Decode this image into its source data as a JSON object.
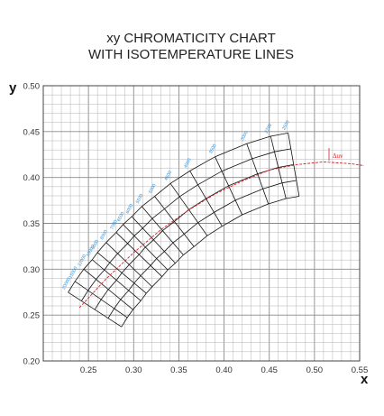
{
  "chart_data": {
    "type": "line",
    "title": [
      "xy CHROMATICITY CHART",
      "WITH ISOTEMPERATURE LINES"
    ],
    "xlabel": "x",
    "ylabel": "y",
    "xlim": [
      0.2,
      0.55
    ],
    "ylim": [
      0.2,
      0.5
    ],
    "xticks": [
      0.25,
      0.3,
      0.35,
      0.4,
      0.45,
      0.5,
      0.55
    ],
    "yticks": [
      0.2,
      0.25,
      0.3,
      0.35,
      0.4,
      0.45,
      0.5
    ],
    "xtick_labels": [
      "0.25",
      "0.30",
      "0.35",
      "0.40",
      "0.45",
      "0.50",
      "0.55"
    ],
    "ytick_labels": [
      "0.20",
      "0.25",
      "0.30",
      "0.35",
      "0.40",
      "0.45",
      "0.50"
    ],
    "grid": true,
    "planckian_locus": {
      "x": [
        0.24,
        0.27,
        0.3,
        0.33,
        0.36,
        0.39,
        0.42,
        0.45,
        0.48,
        0.51,
        0.54,
        0.555
      ],
      "y": [
        0.258,
        0.29,
        0.318,
        0.343,
        0.364,
        0.382,
        0.396,
        0.408,
        0.414,
        0.417,
        0.415,
        0.413
      ]
    },
    "isotemperature_lines": [
      {
        "cct": 2500,
        "cx": 0.477,
        "cy": 0.414,
        "label": "2500"
      },
      {
        "cct": 2700,
        "cx": 0.46,
        "cy": 0.411,
        "label": "2700"
      },
      {
        "cct": 3000,
        "cx": 0.437,
        "cy": 0.404,
        "label": "3000"
      },
      {
        "cct": 3500,
        "cx": 0.405,
        "cy": 0.391,
        "label": "3500"
      },
      {
        "cct": 4000,
        "cx": 0.38,
        "cy": 0.377,
        "label": "4000"
      },
      {
        "cct": 4500,
        "cx": 0.361,
        "cy": 0.365,
        "label": "4500"
      },
      {
        "cct": 5000,
        "cx": 0.345,
        "cy": 0.352,
        "label": "5000"
      },
      {
        "cct": 5500,
        "cx": 0.332,
        "cy": 0.342,
        "label": "5500"
      },
      {
        "cct": 6000,
        "cx": 0.322,
        "cy": 0.332,
        "label": "6000"
      },
      {
        "cct": 6500,
        "cx": 0.313,
        "cy": 0.324,
        "label": "6500"
      },
      {
        "cct": 7000,
        "cx": 0.306,
        "cy": 0.316,
        "label": "7000"
      },
      {
        "cct": 8000,
        "cx": 0.295,
        "cy": 0.305,
        "label": "8000"
      },
      {
        "cct": 9000,
        "cx": 0.287,
        "cy": 0.296,
        "label": "9000"
      },
      {
        "cct": 10000,
        "cx": 0.281,
        "cy": 0.288,
        "label": "10000"
      },
      {
        "cct": 12000,
        "cx": 0.272,
        "cy": 0.278,
        "label": "12000"
      },
      {
        "cct": 15000,
        "cx": 0.264,
        "cy": 0.267,
        "label": "15000"
      },
      {
        "cct": 20000,
        "cx": 0.257,
        "cy": 0.256,
        "label": "20000"
      }
    ],
    "duv_offsets": [
      -0.02,
      -0.01,
      0.0,
      0.01,
      0.02
    ],
    "annotation": "Δuv",
    "colors": {
      "grid": "#b4b4b4",
      "grid_major": "#8a8a8a",
      "mesh": "#111111",
      "locus": "#d2232a",
      "labels": "#2d8fd6"
    }
  }
}
